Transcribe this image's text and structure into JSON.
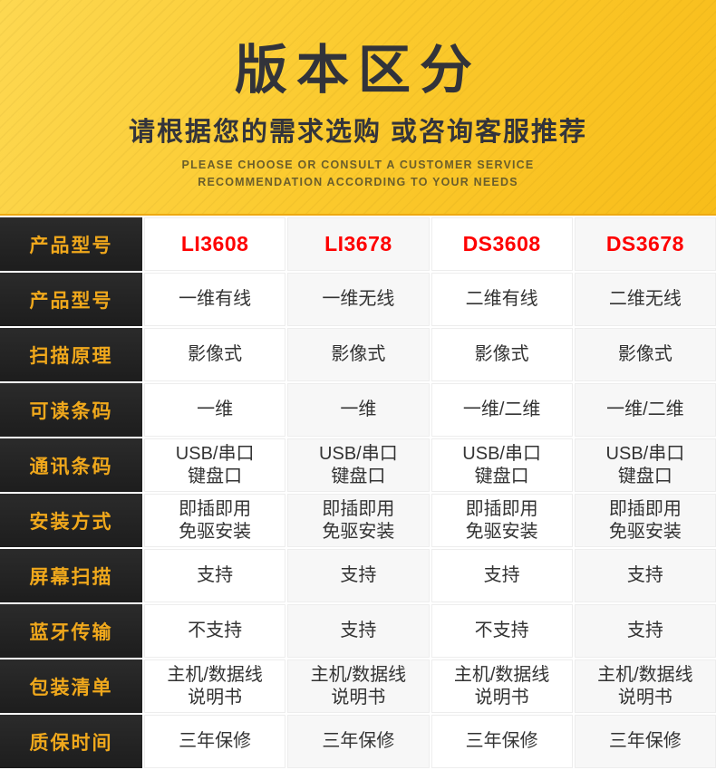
{
  "hero": {
    "title": "版本区分",
    "subtitle": "请根据您的需求选购 或咨询客服推荐",
    "subtitle_en_line1": "PLEASE CHOOSE OR CONSULT A CUSTOMER SERVICE",
    "subtitle_en_line2": "RECOMMENDATION ACCORDING TO YOUR NEEDS"
  },
  "colors": {
    "hero_yellow_light": "#fdd851",
    "hero_yellow_deep": "#f8bd1a",
    "hero_border": "#eda912",
    "label_cell_bg": "#222222",
    "label_text_gold": "#f0a81c",
    "model_red": "#fe0000",
    "value_text": "#333333",
    "alt_cell_bg": "#f7f7f7"
  },
  "table": {
    "rows": [
      {
        "label": "产品型号",
        "type": "model",
        "values": [
          "LI3608",
          "LI3678",
          "DS3608",
          "DS3678"
        ]
      },
      {
        "label": "产品型号",
        "type": "text",
        "values": [
          "一维有线",
          "一维无线",
          "二维有线",
          "二维无线"
        ]
      },
      {
        "label": "扫描原理",
        "type": "text",
        "values": [
          "影像式",
          "影像式",
          "影像式",
          "影像式"
        ]
      },
      {
        "label": "可读条码",
        "type": "text",
        "values": [
          "一维",
          "一维",
          "一维/二维",
          "一维/二维"
        ]
      },
      {
        "label": "通讯条码",
        "type": "text",
        "values": [
          "USB/串口\n键盘口",
          "USB/串口\n键盘口",
          "USB/串口\n键盘口",
          "USB/串口\n键盘口"
        ]
      },
      {
        "label": "安装方式",
        "type": "text",
        "values": [
          "即插即用\n免驱安装",
          "即插即用\n免驱安装",
          "即插即用\n免驱安装",
          "即插即用\n免驱安装"
        ]
      },
      {
        "label": "屏幕扫描",
        "type": "text",
        "values": [
          "支持",
          "支持",
          "支持",
          "支持"
        ]
      },
      {
        "label": "蓝牙传输",
        "type": "text",
        "values": [
          "不支持",
          "支持",
          "不支持",
          "支持"
        ]
      },
      {
        "label": "包装清单",
        "type": "text",
        "values": [
          "主机/数据线\n说明书",
          "主机/数据线\n说明书",
          "主机/数据线\n说明书",
          "主机/数据线\n说明书"
        ]
      },
      {
        "label": "质保时间",
        "type": "text",
        "values": [
          "三年保修",
          "三年保修",
          "三年保修",
          "三年保修"
        ]
      }
    ]
  }
}
